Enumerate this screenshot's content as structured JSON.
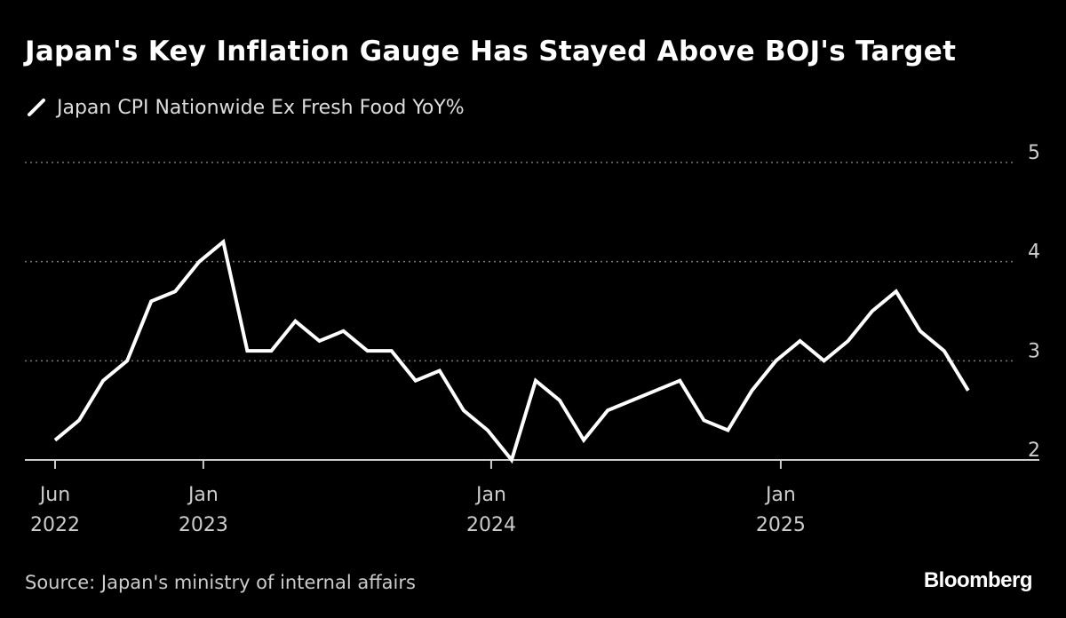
{
  "chart_data": {
    "type": "line",
    "title": "Japan's Key Inflation Gauge Has Stayed Above BOJ's Target",
    "legend": [
      "Japan CPI Nationwide Ex Fresh Food YoY%"
    ],
    "legend_placement": "top-left",
    "xlabel": "",
    "ylabel": "",
    "ylim": [
      2,
      5
    ],
    "yticks": [
      2,
      3,
      4,
      5
    ],
    "grid": true,
    "x_start": "Jun 2022",
    "x_unit": "month",
    "xticks": [
      {
        "pos": 0,
        "line1": "Jun",
        "line2": "2022"
      },
      {
        "pos": 6.17,
        "line1": "Jan",
        "line2": "2023"
      },
      {
        "pos": 18.15,
        "line1": "Jan",
        "line2": "2024"
      },
      {
        "pos": 30.2,
        "line1": "Jan",
        "line2": "2025"
      }
    ],
    "series": [
      {
        "name": "Japan CPI Nationwide Ex Fresh Food YoY%",
        "values": [
          2.2,
          2.4,
          2.8,
          3.0,
          3.6,
          3.7,
          4.0,
          4.2,
          3.1,
          3.1,
          3.4,
          3.2,
          3.3,
          3.1,
          3.1,
          2.8,
          2.9,
          2.5,
          2.3,
          2.0,
          2.8,
          2.6,
          2.2,
          2.5,
          2.6,
          2.7,
          2.8,
          2.4,
          2.3,
          2.7,
          3.0,
          3.2,
          3.0,
          3.2,
          3.5,
          3.7,
          3.3,
          3.1,
          2.7
        ]
      }
    ]
  },
  "source": "Source: Japan's ministry of internal affairs",
  "logo": "Bloomberg",
  "colors": {
    "background": "#000000",
    "line": "#ffffff",
    "grid": "#777777"
  }
}
